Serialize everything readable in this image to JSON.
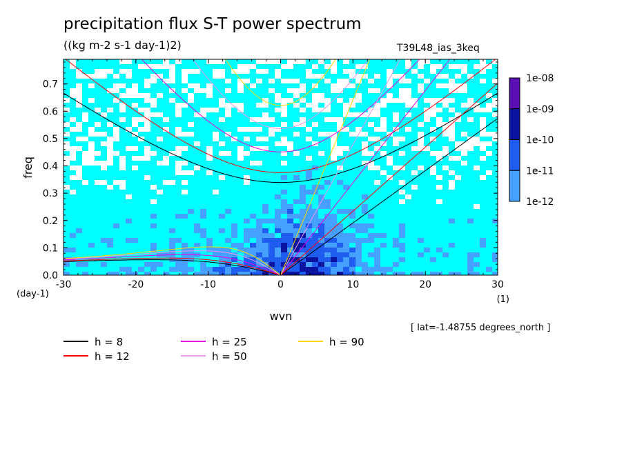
{
  "header": {
    "title": "precipitation flux S-T power spectrum",
    "subtitle": "((kg m-2 s-1 day-1)2)",
    "run_label": "T39L48_ias_3keq",
    "lat_note": "[ lat=-1.48755 degrees_north ]"
  },
  "chart_data": {
    "type": "heatmap",
    "title": "precipitation flux S-T power spectrum",
    "subtitle": "((kg m-2 s-1 day-1)2)",
    "xlabel": "wvn",
    "xunit": "(1)",
    "ylabel": "freq",
    "yunit": "(day-1)",
    "xlim": [
      -30,
      30
    ],
    "ylim": [
      0,
      0.79
    ],
    "x_ticks": [
      -30,
      -20,
      -10,
      0,
      10,
      20,
      30
    ],
    "y_ticks": [
      0.0,
      0.1,
      0.2,
      0.3,
      0.4,
      0.5,
      0.6,
      0.7
    ],
    "x_tick_labels": [
      "-30",
      "-20",
      "-10",
      "0",
      "10",
      "20",
      "30"
    ],
    "y_tick_labels": [
      "0.0",
      "0.1",
      "0.2",
      "0.3",
      "0.4",
      "0.5",
      "0.6",
      "0.7"
    ],
    "colorbar": {
      "levels": [
        "1e-08",
        "1e-09",
        "1e-10",
        "1e-11",
        "1e-12"
      ],
      "colors": [
        "#5a0fb4",
        "#0a14a0",
        "#1f5cf0",
        "#46a0ff",
        "#00ffff"
      ]
    },
    "dispersion_curves": [
      {
        "label": "h =  8",
        "h": 8,
        "color": "#000000"
      },
      {
        "label": "h = 12",
        "h": 12,
        "color": "#ff0000"
      },
      {
        "label": "h = 25",
        "h": 25,
        "color": "#e600e6"
      },
      {
        "label": "h = 50",
        "h": 50,
        "color": "#e699e6"
      },
      {
        "label": "h = 90",
        "h": 90,
        "color": "#ffd700"
      }
    ]
  }
}
